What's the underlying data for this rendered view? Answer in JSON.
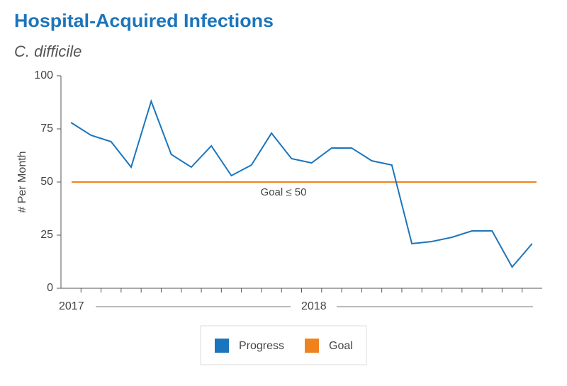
{
  "chart_data": {
    "type": "line",
    "title": "Hospital-Acquired Infections",
    "subtitle": "C. difficile",
    "y_label": "# Per Month",
    "categories": [
      null,
      null,
      null,
      null,
      null,
      null,
      null,
      null,
      null,
      null,
      null,
      null,
      null,
      null,
      null,
      null,
      null,
      null,
      null,
      null,
      null,
      null,
      null,
      null
    ],
    "year_labels": [
      "2017",
      "2018"
    ],
    "series": [
      {
        "name": "Progress",
        "color": "#1b75bc",
        "values": [
          78,
          72,
          69,
          57,
          88,
          63,
          57,
          67,
          53,
          58,
          73,
          61,
          59,
          66,
          66,
          60,
          58,
          21,
          22,
          24,
          27,
          27,
          10,
          21
        ]
      },
      {
        "name": "Goal",
        "color": "#f0821e",
        "values": [
          50,
          50,
          50,
          50,
          50,
          50,
          50,
          50,
          50,
          50,
          50,
          50,
          50,
          50,
          50,
          50,
          50,
          50,
          50,
          50,
          50,
          50,
          50,
          50
        ]
      }
    ],
    "annotation": "Goal ≤ 50",
    "ylim": [
      0,
      100
    ],
    "yticks": [
      0,
      25,
      50,
      75,
      100
    ],
    "grid": false
  }
}
